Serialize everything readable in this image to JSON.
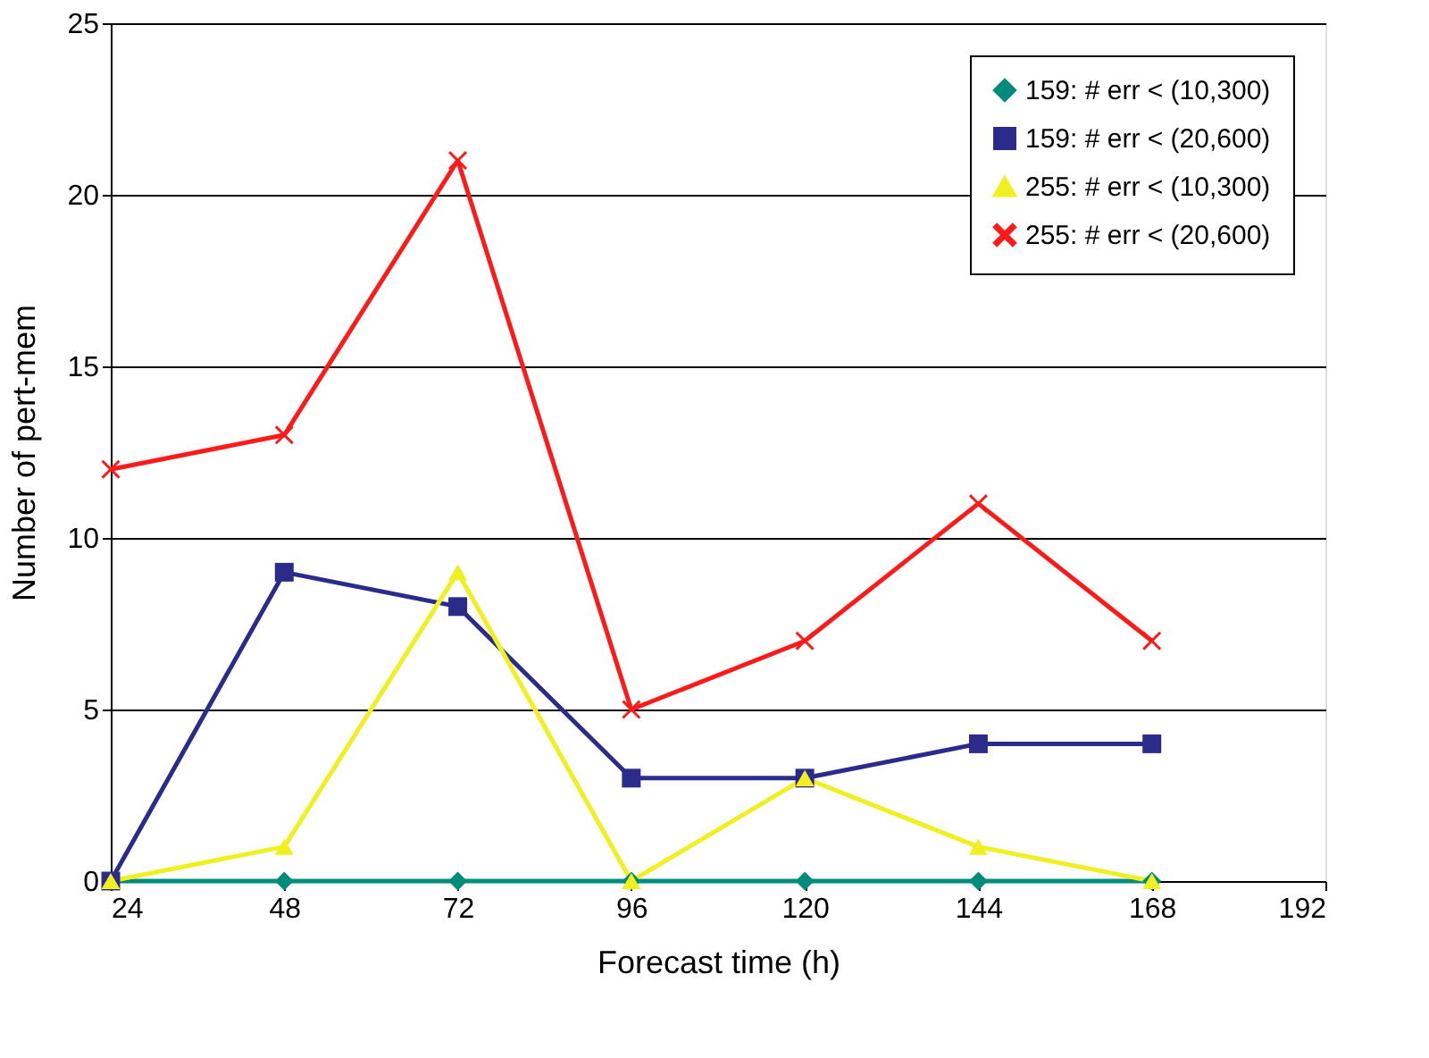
{
  "chart_data": {
    "type": "line",
    "xlabel": "Forecast time (h)",
    "ylabel": "Number of pert-mem",
    "x": [
      24,
      48,
      72,
      96,
      120,
      144,
      168
    ],
    "series": [
      {
        "name": "159: # err < (10,300)",
        "color": "#008c7a",
        "marker": "diamond",
        "values": [
          0,
          0,
          0,
          0,
          0,
          0,
          0
        ]
      },
      {
        "name": "159: # err < (20,600)",
        "color": "#2b2b8c",
        "marker": "square",
        "values": [
          0,
          9,
          8,
          3,
          3,
          4,
          4
        ]
      },
      {
        "name": "255: # err < (10,300)",
        "color": "#f0f020",
        "marker": "triangle",
        "values": [
          0,
          1,
          9,
          0,
          3,
          1,
          0
        ]
      },
      {
        "name": "255: # err < (20,600)",
        "color": "#ff1a1a",
        "marker": "cross",
        "values": [
          12,
          13,
          21,
          5,
          7,
          11,
          7
        ]
      }
    ],
    "xlim": [
      24,
      192
    ],
    "xticks": [
      24,
      48,
      72,
      96,
      120,
      144,
      168,
      192
    ],
    "ylim": [
      0,
      25
    ],
    "yticks": [
      0,
      5,
      10,
      15,
      20,
      25
    ],
    "grid": "y",
    "legend": "top right",
    "line_style": "solid"
  }
}
